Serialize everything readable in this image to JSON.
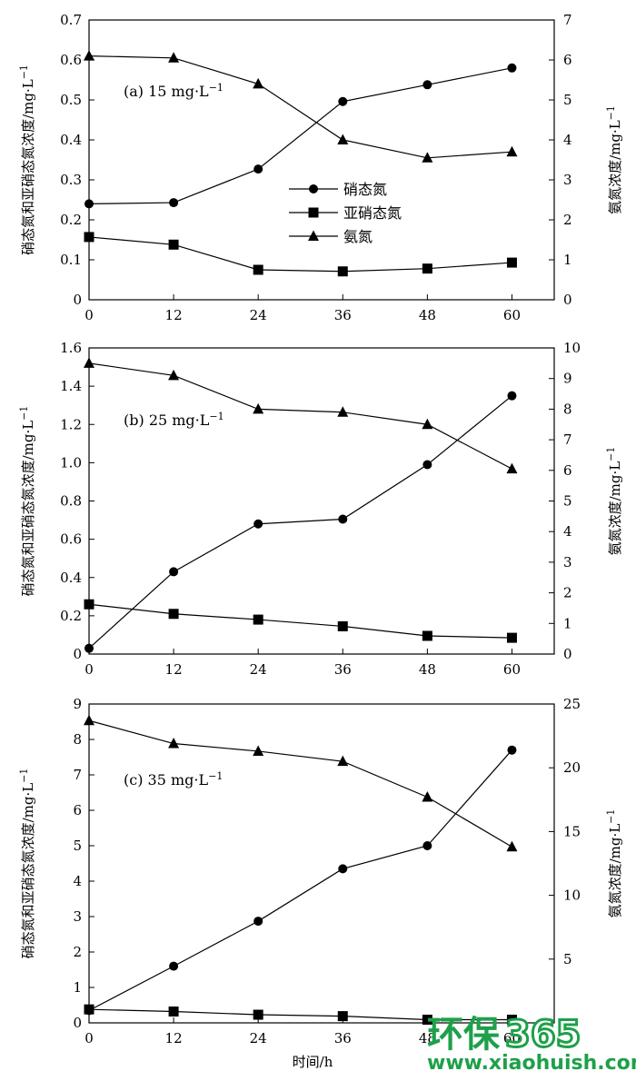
{
  "chart_data": [
    {
      "type": "line",
      "panel_label": "(a) 15 mg·L",
      "panel_label_sup": "−1",
      "x": [
        0,
        12,
        24,
        36,
        48,
        60
      ],
      "xlim": [
        0,
        66
      ],
      "xticks": [
        "0",
        "12",
        "24",
        "36",
        "48",
        "60"
      ],
      "ylabel_left": "硝态氮和亚硝态氮浓度/mg·L",
      "ylabel_left_sup": "−1",
      "ylabel_right": "氨氮浓度/mg·L",
      "ylabel_right_sup": "−1",
      "ylim_left": [
        0,
        0.7
      ],
      "yticks_left": [
        "0",
        "0.1",
        "0.2",
        "0.3",
        "0.4",
        "0.5",
        "0.6",
        "0.7"
      ],
      "ylim_right": [
        0,
        7
      ],
      "yticks_right": [
        "0",
        "1",
        "2",
        "3",
        "4",
        "5",
        "6",
        "7"
      ],
      "legend": {
        "position": "center",
        "entries": [
          "硝态氮",
          "亚硝态氮",
          "氨氮"
        ]
      },
      "series": [
        {
          "name": "硝态氮",
          "marker": "circle",
          "axis": "left",
          "values": [
            0.24,
            0.243,
            0.327,
            0.496,
            0.538,
            0.58
          ]
        },
        {
          "name": "亚硝态氮",
          "marker": "square",
          "axis": "left",
          "values": [
            0.157,
            0.138,
            0.075,
            0.071,
            0.078,
            0.093
          ]
        },
        {
          "name": "氨氮",
          "marker": "triangle",
          "axis": "right",
          "values": [
            6.1,
            6.05,
            5.4,
            4.0,
            3.55,
            3.7
          ]
        }
      ]
    },
    {
      "type": "line",
      "panel_label": "(b) 25 mg·L",
      "panel_label_sup": "−1",
      "x": [
        0,
        12,
        24,
        36,
        48,
        60
      ],
      "xlim": [
        0,
        66
      ],
      "xticks": [
        "0",
        "12",
        "24",
        "36",
        "48",
        "60"
      ],
      "ylabel_left": "硝态氮和亚硝态氮浓度/mg·L",
      "ylabel_left_sup": "−1",
      "ylabel_right": "氨氮浓度/mg·L",
      "ylabel_right_sup": "−1",
      "ylim_left": [
        0,
        1.6
      ],
      "yticks_left": [
        "0",
        "0.2",
        "0.4",
        "0.6",
        "0.8",
        "1.0",
        "1.2",
        "1.4",
        "1.6"
      ],
      "ylim_right": [
        0,
        10
      ],
      "yticks_right": [
        "0",
        "1",
        "2",
        "3",
        "4",
        "5",
        "6",
        "7",
        "8",
        "9",
        "10"
      ],
      "series": [
        {
          "name": "硝态氮",
          "marker": "circle",
          "axis": "left",
          "values": [
            0.03,
            0.43,
            0.68,
            0.705,
            0.99,
            1.35
          ]
        },
        {
          "name": "亚硝态氮",
          "marker": "square",
          "axis": "left",
          "values": [
            0.26,
            0.21,
            0.18,
            0.145,
            0.095,
            0.085
          ]
        },
        {
          "name": "氨氮",
          "marker": "triangle",
          "axis": "right",
          "values": [
            9.5,
            9.1,
            8.0,
            7.9,
            7.5,
            6.05
          ]
        }
      ]
    },
    {
      "type": "line",
      "panel_label": "(c) 35 mg·L",
      "panel_label_sup": "−1",
      "x": [
        0,
        12,
        24,
        36,
        48,
        60
      ],
      "xlim": [
        0,
        66
      ],
      "xticks": [
        "0",
        "12",
        "24",
        "36",
        "48",
        "60"
      ],
      "xlabel": "时间/h",
      "ylabel_left": "硝态氮和亚硝态氮浓度/mg·L",
      "ylabel_left_sup": "−1",
      "ylabel_right": "氨氮浓度/mg·L",
      "ylabel_right_sup": "−1",
      "ylim_left": [
        0,
        9
      ],
      "yticks_left": [
        "0",
        "1",
        "2",
        "3",
        "4",
        "5",
        "6",
        "7",
        "8",
        "9"
      ],
      "ylim_right": [
        0,
        25
      ],
      "yticks_right": [
        "5",
        "10",
        "15",
        "20",
        "25"
      ],
      "yticks_right_values": [
        5,
        10,
        15,
        20,
        25
      ],
      "series": [
        {
          "name": "硝态氮",
          "marker": "circle",
          "axis": "left",
          "values": [
            0.35,
            1.6,
            2.87,
            4.35,
            5.0,
            7.7
          ]
        },
        {
          "name": "亚硝态氮",
          "marker": "square",
          "axis": "left",
          "values": [
            0.38,
            0.32,
            0.23,
            0.19,
            0.09,
            0.09
          ]
        },
        {
          "name": "氨氮",
          "marker": "triangle",
          "axis": "right",
          "values": [
            23.7,
            21.9,
            21.3,
            20.5,
            17.7,
            13.8
          ]
        }
      ]
    }
  ],
  "watermark": {
    "brand_text": "环保",
    "brand_num": "365",
    "site": "www.xiaohuish.com",
    "color": "#1ea04a"
  }
}
